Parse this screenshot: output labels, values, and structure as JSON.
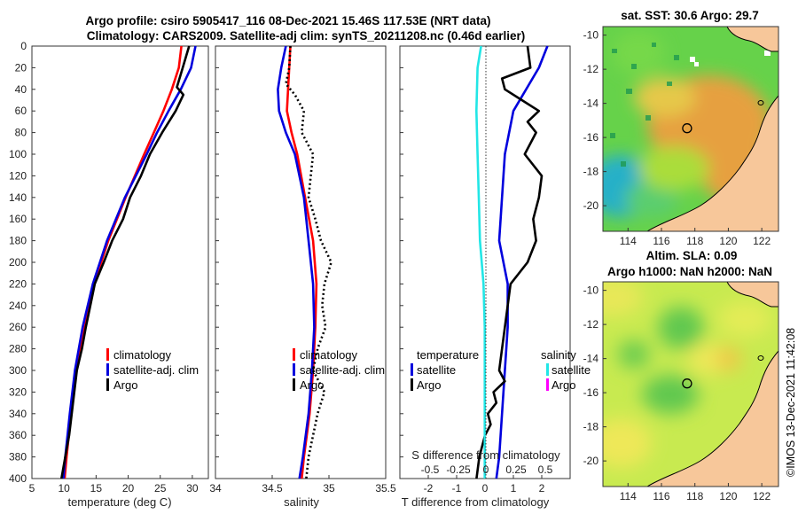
{
  "header": {
    "title_line1": "Argo profile: csiro 5905417_116 08-Dec-2021 15.46S 117.53E (NRT data)",
    "title_line2": "Climatology: CARS2009. Satellite-adj clim: synTS_20211208.nc (0.46d earlier)"
  },
  "stamp": "©IMOS 13-Dec-2021 11:42:08",
  "colors": {
    "climatology": "#ff0000",
    "satellite": "#0000dd",
    "argo": "#000000",
    "sat_salinity_diff": "#22e6e6",
    "argo_salinity_diff": "#ff00ff",
    "land": "#f7c79a"
  },
  "chart_data": [
    {
      "id": "temperature",
      "type": "line",
      "xlabel": "temperature (deg C)",
      "ylabel": "",
      "xlim": [
        5,
        32.5
      ],
      "ylim": [
        400,
        0
      ],
      "xticks": [
        5,
        10,
        15,
        20,
        25,
        30
      ],
      "yticks": [
        0,
        20,
        40,
        60,
        80,
        100,
        120,
        140,
        160,
        180,
        200,
        220,
        240,
        260,
        280,
        300,
        320,
        340,
        360,
        380,
        400
      ],
      "legend": [
        "climatology",
        "satellite-adj. clim",
        "Argo"
      ],
      "legend_position": "bottom-right",
      "series": [
        {
          "name": "climatology",
          "depth": [
            0,
            20,
            40,
            60,
            80,
            100,
            140,
            180,
            220,
            260,
            300,
            340,
            380,
            400
          ],
          "values": [
            28.3,
            27.9,
            26.8,
            25.5,
            24.0,
            22.5,
            19.6,
            16.9,
            14.7,
            13.1,
            11.9,
            11.1,
            10.4,
            10.1
          ]
        },
        {
          "name": "satellite-adj. clim",
          "depth": [
            0,
            20,
            40,
            60,
            80,
            100,
            140,
            180,
            220,
            260,
            300,
            340,
            380,
            400
          ],
          "values": [
            30.5,
            29.8,
            28.2,
            26.3,
            24.5,
            22.9,
            19.5,
            16.7,
            14.5,
            12.9,
            11.7,
            10.9,
            10.2,
            9.9
          ]
        },
        {
          "name": "Argo",
          "depth": [
            0,
            20,
            38,
            45,
            60,
            80,
            100,
            120,
            140,
            160,
            180,
            200,
            220,
            240,
            260,
            280,
            300,
            320,
            340,
            360,
            380,
            400
          ],
          "values": [
            29.5,
            28.5,
            27.6,
            28.6,
            27.4,
            25.3,
            23.4,
            22.0,
            20.3,
            19.2,
            17.5,
            16.2,
            14.8,
            14.1,
            13.4,
            12.8,
            12.0,
            11.6,
            11.2,
            10.8,
            10.2,
            9.6
          ]
        }
      ]
    },
    {
      "id": "salinity",
      "type": "line",
      "xlabel": "salinity",
      "xlim": [
        34,
        35.5
      ],
      "ylim": [
        400,
        0
      ],
      "xticks": [
        34,
        34.5,
        35,
        35.5
      ],
      "legend": [
        "climatology",
        "satellite-adj. clim",
        "Argo"
      ],
      "legend_position": "bottom-right",
      "series": [
        {
          "name": "climatology",
          "depth": [
            0,
            20,
            40,
            60,
            80,
            100,
            140,
            180,
            220,
            260,
            300,
            340,
            380,
            400
          ],
          "values": [
            34.66,
            34.65,
            34.64,
            34.63,
            34.67,
            34.72,
            34.79,
            34.86,
            34.89,
            34.88,
            34.86,
            34.83,
            34.78,
            34.76
          ]
        },
        {
          "name": "satellite-adj. clim",
          "depth": [
            0,
            20,
            40,
            60,
            80,
            100,
            140,
            180,
            220,
            260,
            300,
            340,
            380,
            400
          ],
          "values": [
            34.62,
            34.58,
            34.55,
            34.56,
            34.62,
            34.7,
            34.78,
            34.82,
            34.86,
            34.87,
            34.85,
            34.82,
            34.77,
            34.74
          ]
        },
        {
          "name": "Argo",
          "depth": [
            0,
            20,
            35,
            45,
            60,
            80,
            100,
            120,
            140,
            160,
            180,
            200,
            220,
            240,
            260,
            280,
            300,
            320,
            340,
            360,
            380,
            400
          ],
          "values": [
            34.66,
            34.65,
            34.62,
            34.7,
            34.78,
            34.76,
            34.86,
            34.84,
            34.82,
            34.88,
            34.93,
            35.02,
            34.96,
            34.94,
            34.97,
            34.9,
            34.86,
            34.96,
            34.9,
            34.86,
            34.82,
            34.8
          ]
        }
      ]
    },
    {
      "id": "difference",
      "type": "line",
      "xlabel": "T difference from climatology",
      "top_label": "S difference from climatology",
      "xlim": [
        -3,
        3
      ],
      "ylim": [
        400,
        0
      ],
      "xticks": [
        -2,
        -1,
        0,
        1,
        2
      ],
      "top_ticks": [
        "-0.5",
        "-0.25",
        "0",
        "0.25",
        "0.5"
      ],
      "legend_temperature_title": "temperature",
      "legend_salinity_title": "salinity",
      "legend": [
        "satellite",
        "Argo",
        "satellite",
        "Argo"
      ],
      "legend_position": "bottom",
      "series": [
        {
          "name": "temperature satellite",
          "depth": [
            0,
            20,
            60,
            100,
            140,
            180,
            220,
            260,
            300,
            340,
            380,
            400
          ],
          "values": [
            2.2,
            1.9,
            1.0,
            0.7,
            0.6,
            0.5,
            0.8,
            0.8,
            0.7,
            0.6,
            0.5,
            0.4
          ]
        },
        {
          "name": "temperature Argo",
          "depth": [
            0,
            20,
            30,
            40,
            50,
            60,
            70,
            80,
            100,
            120,
            140,
            160,
            180,
            200,
            220,
            240,
            260,
            280,
            300,
            310,
            320,
            330,
            340,
            350,
            360,
            380,
            400
          ],
          "values": [
            1.5,
            1.6,
            0.6,
            0.7,
            1.3,
            1.9,
            1.5,
            1.8,
            1.4,
            2.0,
            1.9,
            1.7,
            1.8,
            1.5,
            0.9,
            0.8,
            0.7,
            0.6,
            0.5,
            0.7,
            0.3,
            0.4,
            0.1,
            0.2,
            0.0,
            -0.2,
            -0.3
          ]
        },
        {
          "name": "salinity satellite",
          "depth": [
            0,
            20,
            60,
            100,
            140,
            180,
            220,
            260,
            300,
            340,
            380,
            400
          ],
          "values": [
            -0.04,
            -0.07,
            -0.08,
            -0.07,
            -0.06,
            -0.05,
            -0.02,
            -0.01,
            -0.01,
            -0.01,
            -0.01,
            -0.01
          ]
        }
      ]
    },
    {
      "id": "sst_map",
      "type": "heatmap",
      "title": "sat. SST: 30.6 Argo: 29.7",
      "xticks": [
        114,
        116,
        118,
        120,
        122
      ],
      "yticks": [
        -10,
        -12,
        -14,
        -16,
        -18,
        -20
      ],
      "xlim": [
        112.5,
        123
      ],
      "ylim": [
        -21.5,
        -9.5
      ],
      "argo_position": {
        "lon": 117.53,
        "lat": -15.46
      }
    },
    {
      "id": "sla_map",
      "type": "heatmap",
      "title_line1": "Altim. SLA: 0.09",
      "title_line2": "Argo h1000: NaN h2000: NaN",
      "xticks": [
        114,
        116,
        118,
        120,
        122
      ],
      "yticks": [
        -10,
        -12,
        -14,
        -16,
        -18,
        -20
      ],
      "xlim": [
        112.5,
        123
      ],
      "ylim": [
        -21.5,
        -9.5
      ],
      "argo_position": {
        "lon": 117.53,
        "lat": -15.46
      }
    }
  ]
}
